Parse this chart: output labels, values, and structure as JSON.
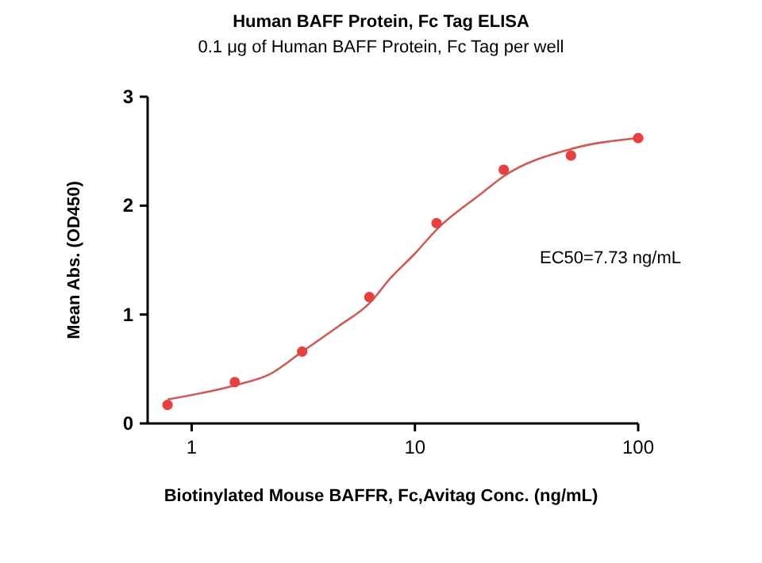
{
  "chart_data": {
    "type": "scatter",
    "title": "Human BAFF Protein, Fc Tag ELISA",
    "subtitle": "0.1 μg of Human BAFF Protein, Fc Tag per well",
    "xlabel": "Biotinylated Mouse BAFFR, Fc,Avitag Conc. (ng/mL)",
    "ylabel": "Mean Abs. (OD450)",
    "log": "x",
    "xlim": [
      0.635,
      100
    ],
    "ylim": [
      0,
      3
    ],
    "xticks": [
      1,
      10,
      100
    ],
    "yticks": [
      0,
      1,
      2,
      3
    ],
    "grid": false,
    "annotations": [
      "EC50=7.73 ng/mL"
    ],
    "series": [
      {
        "color": "#e8403f",
        "marker": "circle",
        "x": [
          0.78,
          1.56,
          3.125,
          6.25,
          12.5,
          25,
          50,
          100
        ],
        "values": [
          0.17,
          0.38,
          0.66,
          1.16,
          1.84,
          2.33,
          2.46,
          2.62
        ]
      },
      {
        "type": "line",
        "color": "#cd5a55",
        "marker": "none",
        "line_style": "solid",
        "x": [
          0.78,
          1.56,
          2.23,
          3.13,
          4.53,
          6.23,
          7.82,
          10,
          12.5,
          19.8,
          25,
          50,
          100
        ],
        "values": [
          0.22,
          0.35,
          0.45,
          0.66,
          0.89,
          1.1,
          1.34,
          1.56,
          1.78,
          2.11,
          2.27,
          2.52,
          2.62
        ]
      }
    ]
  }
}
